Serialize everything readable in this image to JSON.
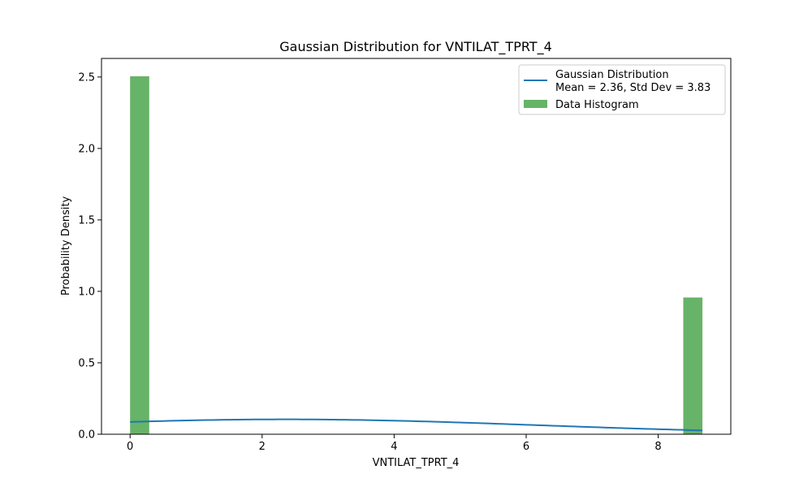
{
  "chart_data": {
    "type": "bar",
    "title": "Gaussian Distribution for VNTILAT_TPRT_4",
    "xlabel": "VNTILAT_TPRT_4",
    "ylabel": "Probability Density",
    "xlim": [
      -0.433,
      9.1
    ],
    "ylim": [
      0,
      2.63
    ],
    "xticks": [
      0,
      2,
      4,
      6,
      8
    ],
    "xtick_labels": [
      "0",
      "2",
      "4",
      "6",
      "8"
    ],
    "yticks": [
      0,
      0.5,
      1.0,
      1.5,
      2.0,
      2.5
    ],
    "ytick_labels": [
      "0.0",
      "0.5",
      "1.0",
      "1.5",
      "2.0",
      "2.5"
    ],
    "grid": false,
    "legend_position": "top-right",
    "histogram": {
      "name": "Data Histogram",
      "color": "#4CA64C",
      "bins": [
        {
          "x0": 0.0,
          "x1": 0.29,
          "density": 2.505
        },
        {
          "x0": 8.38,
          "x1": 8.67,
          "density": 0.957
        }
      ]
    },
    "gaussian": {
      "name": "Gaussian Distribution",
      "name_line2": "Mean = 2.36, Std Dev = 3.83",
      "mean": 2.36,
      "std": 3.83,
      "x_range": [
        0,
        8.67
      ],
      "color": "#1f77b4"
    }
  }
}
